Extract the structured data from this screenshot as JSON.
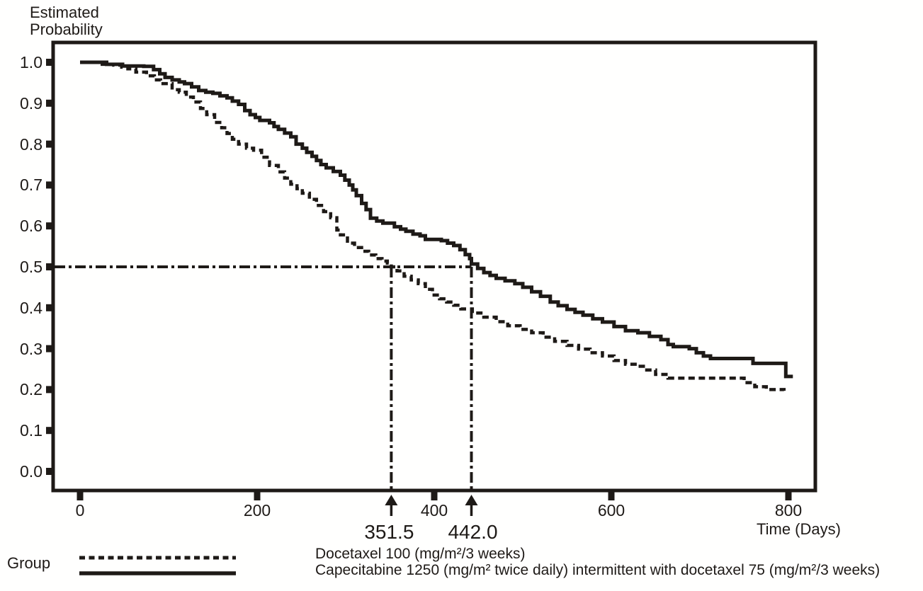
{
  "figure": {
    "background": "#fffffe",
    "ink_color": "#1e1a17"
  },
  "chart_data": {
    "type": "line",
    "subtype": "kaplan-meier-step-survival",
    "title": "",
    "grid": false,
    "y_axis": {
      "title_line1": "Estimated",
      "title_line2": "Probability",
      "ticks": [
        "1.0",
        "0.9",
        "0.8",
        "0.7",
        "0.6",
        "0.5",
        "0.4",
        "0.3",
        "0.2",
        "0.1",
        "0.0"
      ],
      "range": [
        0.0,
        1.0
      ]
    },
    "x_axis": {
      "title": "Time (Days)",
      "ticks": [
        "0",
        "200",
        "400",
        "600",
        "800"
      ],
      "tick_values": [
        0,
        200,
        400,
        600,
        800
      ],
      "range": [
        0,
        830
      ]
    },
    "legend": {
      "group_label": "Group",
      "position": "bottom"
    },
    "annotations": {
      "median_probability": 0.5,
      "median_values": [
        351.5,
        442.0
      ],
      "median_labels": [
        "351.5",
        "442.0"
      ]
    },
    "series": [
      {
        "name": "Docetaxel 100 (mg/m²/3 weeks)",
        "style": "dashed",
        "median_days": 351.5,
        "points": [
          [
            0,
            1.0
          ],
          [
            14,
            1.0
          ],
          [
            25,
            0.995
          ],
          [
            38,
            0.993
          ],
          [
            47,
            0.988
          ],
          [
            54,
            0.984
          ],
          [
            63,
            0.976
          ],
          [
            75,
            0.967
          ],
          [
            84,
            0.957
          ],
          [
            91,
            0.948
          ],
          [
            104,
            0.933
          ],
          [
            112,
            0.927
          ],
          [
            120,
            0.915
          ],
          [
            128,
            0.903
          ],
          [
            136,
            0.887
          ],
          [
            143,
            0.872
          ],
          [
            152,
            0.853
          ],
          [
            160,
            0.84
          ],
          [
            166,
            0.826
          ],
          [
            172,
            0.812
          ],
          [
            179,
            0.8
          ],
          [
            188,
            0.79
          ],
          [
            196,
            0.785
          ],
          [
            205,
            0.768
          ],
          [
            214,
            0.748
          ],
          [
            224,
            0.732
          ],
          [
            231,
            0.717
          ],
          [
            238,
            0.702
          ],
          [
            245,
            0.691
          ],
          [
            251,
            0.68
          ],
          [
            259,
            0.665
          ],
          [
            267,
            0.65
          ],
          [
            275,
            0.635
          ],
          [
            283,
            0.62
          ],
          [
            290,
            0.59
          ],
          [
            294,
            0.578
          ],
          [
            302,
            0.558
          ],
          [
            310,
            0.547
          ],
          [
            318,
            0.538
          ],
          [
            326,
            0.529
          ],
          [
            334,
            0.52
          ],
          [
            341,
            0.514
          ],
          [
            347,
            0.509
          ],
          [
            351.5,
            0.5
          ],
          [
            358,
            0.49
          ],
          [
            366,
            0.477
          ],
          [
            374,
            0.468
          ],
          [
            382,
            0.459
          ],
          [
            390,
            0.445
          ],
          [
            398,
            0.431
          ],
          [
            406,
            0.422
          ],
          [
            414,
            0.414
          ],
          [
            422,
            0.406
          ],
          [
            430,
            0.397
          ],
          [
            443,
            0.387
          ],
          [
            456,
            0.377
          ],
          [
            470,
            0.366
          ],
          [
            483,
            0.356
          ],
          [
            497,
            0.347
          ],
          [
            510,
            0.339
          ],
          [
            523,
            0.328
          ],
          [
            536,
            0.318
          ],
          [
            550,
            0.308
          ],
          [
            563,
            0.299
          ],
          [
            576,
            0.29
          ],
          [
            590,
            0.282
          ],
          [
            603,
            0.271
          ],
          [
            616,
            0.262
          ],
          [
            630,
            0.257
          ],
          [
            640,
            0.248
          ],
          [
            650,
            0.237
          ],
          [
            664,
            0.228
          ],
          [
            740,
            0.228
          ],
          [
            750,
            0.217
          ],
          [
            762,
            0.207
          ],
          [
            775,
            0.2
          ],
          [
            795,
            0.197
          ]
        ]
      },
      {
        "name": "Capecitabine 1250 (mg/m² twice daily) intermittent with docetaxel 75 (mg/m²/3 weeks)",
        "style": "solid",
        "median_days": 442.0,
        "points": [
          [
            0,
            1.0
          ],
          [
            18,
            1.0
          ],
          [
            30,
            0.995
          ],
          [
            48,
            0.991
          ],
          [
            72,
            0.99
          ],
          [
            83,
            0.982
          ],
          [
            90,
            0.972
          ],
          [
            96,
            0.963
          ],
          [
            104,
            0.957
          ],
          [
            112,
            0.952
          ],
          [
            118,
            0.948
          ],
          [
            126,
            0.94
          ],
          [
            134,
            0.931
          ],
          [
            142,
            0.927
          ],
          [
            150,
            0.924
          ],
          [
            158,
            0.918
          ],
          [
            166,
            0.913
          ],
          [
            172,
            0.905
          ],
          [
            179,
            0.897
          ],
          [
            186,
            0.882
          ],
          [
            192,
            0.872
          ],
          [
            198,
            0.865
          ],
          [
            203,
            0.858
          ],
          [
            214,
            0.852
          ],
          [
            219,
            0.843
          ],
          [
            224,
            0.836
          ],
          [
            231,
            0.827
          ],
          [
            238,
            0.818
          ],
          [
            244,
            0.8
          ],
          [
            251,
            0.79
          ],
          [
            256,
            0.78
          ],
          [
            262,
            0.77
          ],
          [
            267,
            0.76
          ],
          [
            272,
            0.75
          ],
          [
            278,
            0.742
          ],
          [
            286,
            0.733
          ],
          [
            294,
            0.724
          ],
          [
            299,
            0.712
          ],
          [
            304,
            0.7
          ],
          [
            308,
            0.688
          ],
          [
            312,
            0.674
          ],
          [
            318,
            0.655
          ],
          [
            323,
            0.64
          ],
          [
            328,
            0.619
          ],
          [
            335,
            0.612
          ],
          [
            342,
            0.607
          ],
          [
            355,
            0.598
          ],
          [
            362,
            0.592
          ],
          [
            368,
            0.587
          ],
          [
            376,
            0.58
          ],
          [
            384,
            0.576
          ],
          [
            390,
            0.567
          ],
          [
            408,
            0.564
          ],
          [
            415,
            0.558
          ],
          [
            422,
            0.552
          ],
          [
            429,
            0.542
          ],
          [
            435,
            0.53
          ],
          [
            440,
            0.52
          ],
          [
            442,
            0.507
          ],
          [
            449,
            0.496
          ],
          [
            456,
            0.486
          ],
          [
            463,
            0.479
          ],
          [
            470,
            0.472
          ],
          [
            480,
            0.466
          ],
          [
            491,
            0.459
          ],
          [
            500,
            0.45
          ],
          [
            510,
            0.439
          ],
          [
            520,
            0.428
          ],
          [
            531,
            0.414
          ],
          [
            540,
            0.405
          ],
          [
            550,
            0.396
          ],
          [
            559,
            0.389
          ],
          [
            568,
            0.382
          ],
          [
            579,
            0.373
          ],
          [
            590,
            0.365
          ],
          [
            603,
            0.354
          ],
          [
            616,
            0.344
          ],
          [
            630,
            0.339
          ],
          [
            643,
            0.33
          ],
          [
            656,
            0.322
          ],
          [
            664,
            0.31
          ],
          [
            670,
            0.305
          ],
          [
            688,
            0.3
          ],
          [
            696,
            0.29
          ],
          [
            704,
            0.282
          ],
          [
            712,
            0.276
          ],
          [
            745,
            0.276
          ],
          [
            760,
            0.264
          ],
          [
            796,
            0.264
          ],
          [
            797,
            0.232
          ],
          [
            805,
            0.232
          ]
        ]
      }
    ]
  }
}
